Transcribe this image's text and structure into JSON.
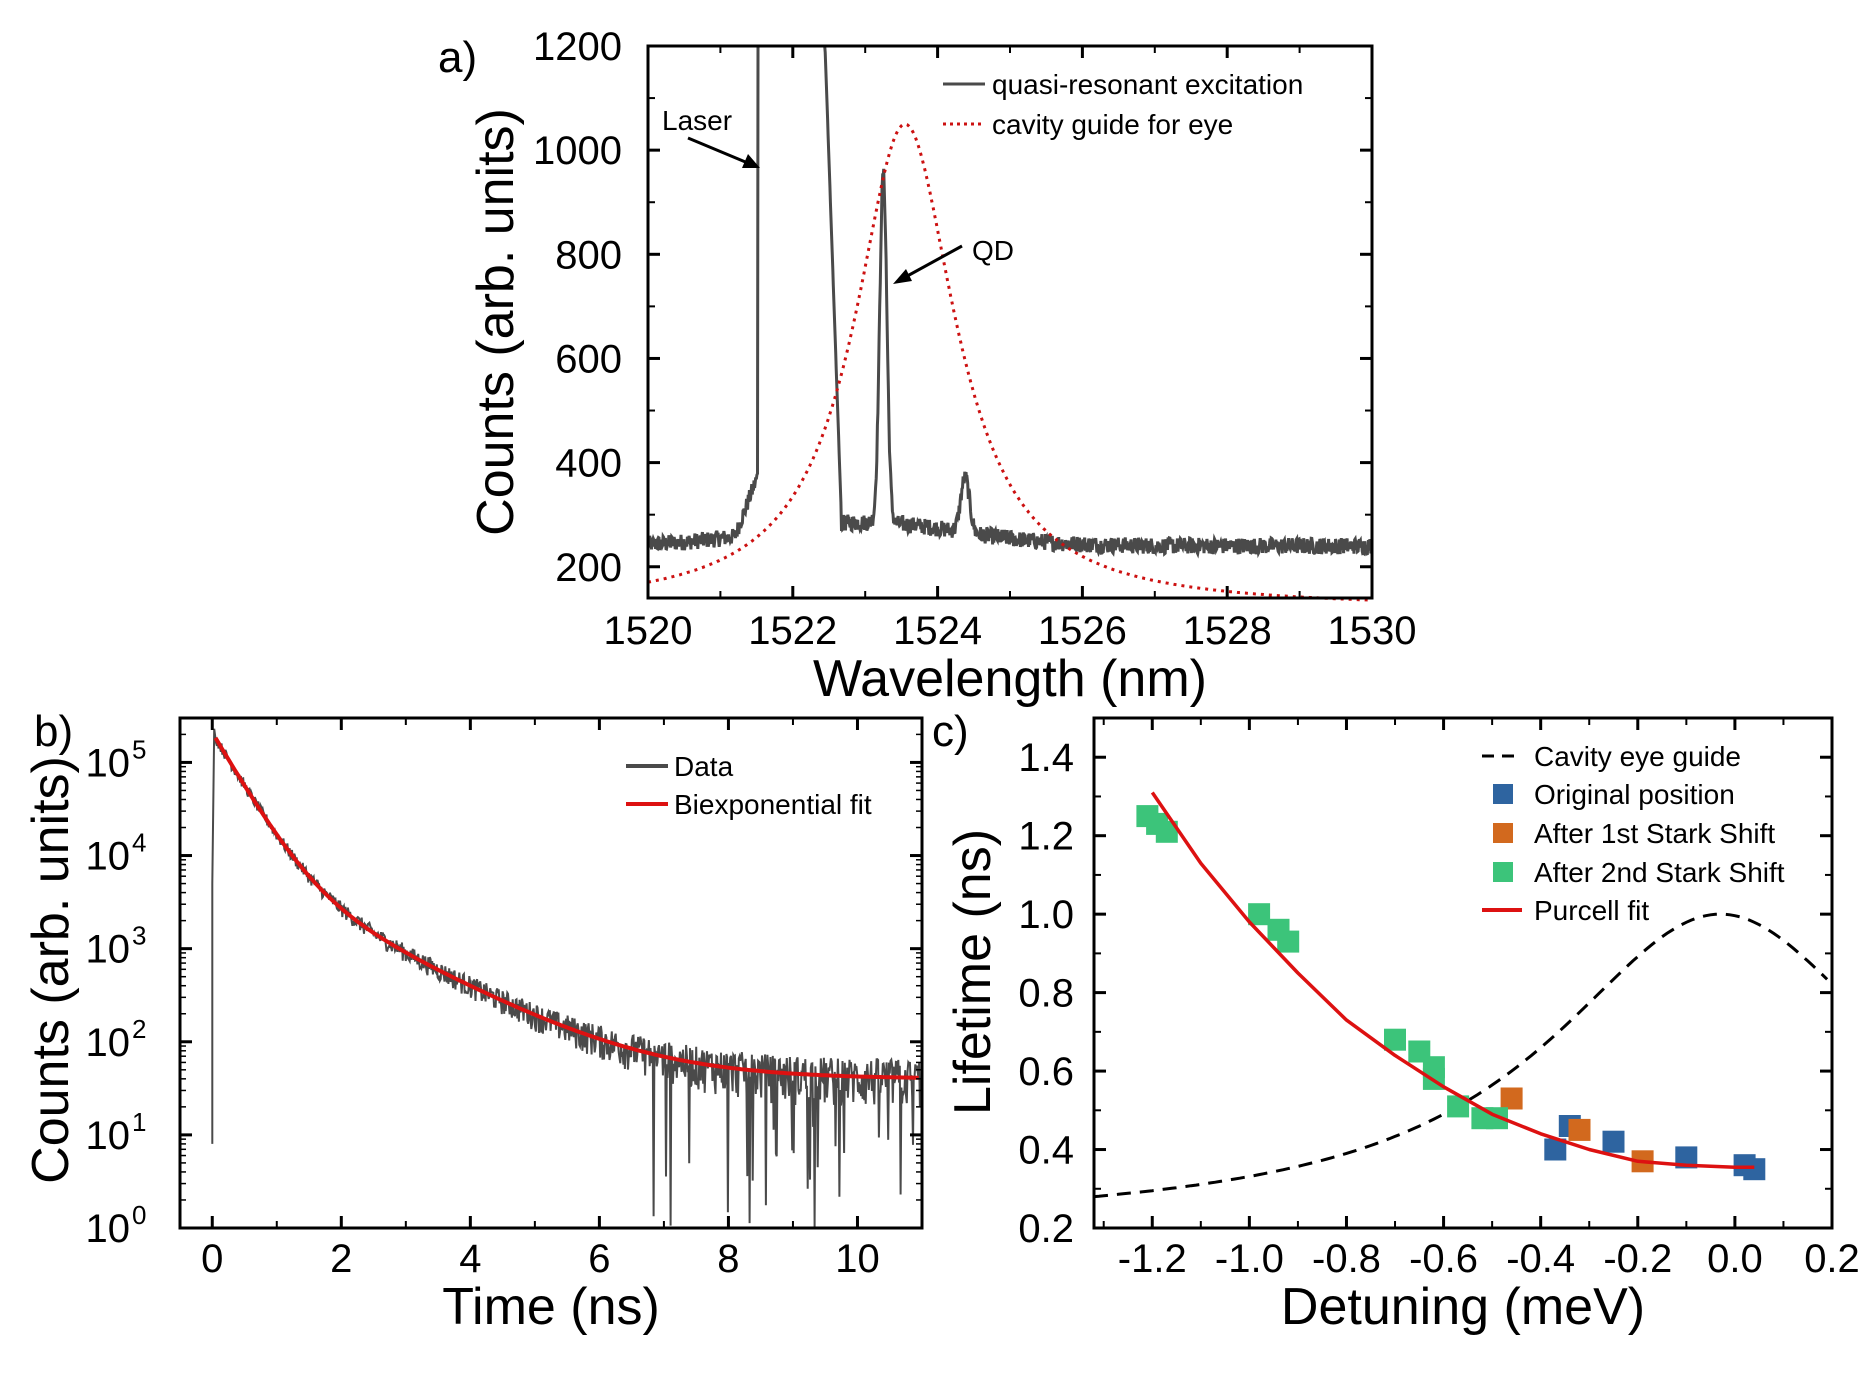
{
  "chart_data": [
    {
      "panel": "a)",
      "type": "line",
      "xlabel": "Wavelength (nm)",
      "ylabel": "Counts (arb. units)",
      "xlim": [
        1520,
        1530
      ],
      "ylim": [
        140,
        1200
      ],
      "xticks": [
        "1520",
        "1522",
        "1524",
        "1526",
        "1528",
        "1530"
      ],
      "yticks": [
        "200",
        "400",
        "600",
        "800",
        "1000",
        "1200"
      ],
      "legend": [
        {
          "label": "quasi-resonant excitation",
          "color": "#4a4a4a",
          "style": "solid"
        },
        {
          "label": "cavity guide for eye",
          "color": "#cc1111",
          "style": "dotted"
        }
      ],
      "annotations": [
        {
          "text": "Laser",
          "x": 1521.6,
          "y": 1000
        },
        {
          "text": "QD",
          "x": 1523.25,
          "y": 860
        }
      ],
      "series": [
        {
          "name": "quasi-resonant excitation",
          "color": "#4a4a4a",
          "baseline": 240,
          "laser_peak": {
            "from": 1521.52,
            "to": 1522.42
          },
          "qd_peak": {
            "center": 1523.25,
            "height": 910
          },
          "secondary_peak": {
            "center": 1524.38,
            "height": 385
          }
        },
        {
          "name": "cavity guide for eye",
          "color": "#cc1111",
          "type": "lorentzian",
          "center": 1523.55,
          "peak": 1050,
          "offset": 120,
          "hwhm": 0.85
        }
      ]
    },
    {
      "panel": "b)",
      "type": "line",
      "yscale": "log",
      "xlabel": "Time (ns)",
      "ylabel": "Counts (arb. units)",
      "xlim": [
        -0.5,
        11
      ],
      "ylim": [
        1,
        300000
      ],
      "xticks": [
        "0",
        "2",
        "4",
        "6",
        "8",
        "10"
      ],
      "yticks_base": "10",
      "yticks_exp": [
        "0",
        "1",
        "2",
        "3",
        "4",
        "5"
      ],
      "legend": [
        {
          "label": "Data",
          "color": "#4a4a4a"
        },
        {
          "label": "Biexponential fit",
          "color": "#dd1111"
        }
      ],
      "series": [
        {
          "name": "Data",
          "color": "#4a4a4a",
          "peak": 230000,
          "peak_time": 0.05,
          "floor_dip": 5000
        },
        {
          "name": "Biexponential fit",
          "color": "#dd1111",
          "a1": 200000,
          "tau1": 0.36,
          "a2": 10000,
          "tau2": 1.2,
          "offset": 40
        }
      ]
    },
    {
      "panel": "c)",
      "type": "scatter",
      "xlabel": "Detuning (meV)",
      "ylabel": "Lifetime (ns)",
      "xlim": [
        -1.32,
        0.2
      ],
      "ylim": [
        0.2,
        1.5
      ],
      "xticks": [
        "-1.2",
        "-1.0",
        "-0.8",
        "-0.6",
        "-0.4",
        "-0.2",
        "0.0",
        "0.2"
      ],
      "yticks": [
        "0.2",
        "0.4",
        "0.6",
        "0.8",
        "1.0",
        "1.2",
        "1.4"
      ],
      "legend": [
        {
          "label": "Cavity eye guide",
          "color": "#000000",
          "kind": "dashed"
        },
        {
          "label": "Original position",
          "color": "#2e64a0",
          "kind": "square"
        },
        {
          "label": "After 1st Stark Shift",
          "color": "#d2691e",
          "kind": "square"
        },
        {
          "label": "After 2nd Stark Shift",
          "color": "#3cc47a",
          "kind": "square"
        },
        {
          "label": "Purcell fit",
          "color": "#dd1111",
          "kind": "line"
        }
      ],
      "series": [
        {
          "name": "Original position",
          "color": "#2e64a0",
          "points": [
            [
              -0.37,
              0.4
            ],
            [
              -0.34,
              0.46
            ],
            [
              -0.25,
              0.42
            ],
            [
              -0.1,
              0.38
            ],
            [
              0.02,
              0.36
            ],
            [
              0.04,
              0.35
            ]
          ]
        },
        {
          "name": "After 1st Stark Shift",
          "color": "#d2691e",
          "points": [
            [
              -0.46,
              0.53
            ],
            [
              -0.32,
              0.45
            ],
            [
              -0.19,
              0.37
            ]
          ]
        },
        {
          "name": "After 2nd Stark Shift",
          "color": "#3cc47a",
          "points": [
            [
              -1.21,
              1.25
            ],
            [
              -1.19,
              1.23
            ],
            [
              -1.17,
              1.21
            ],
            [
              -0.98,
              1.0
            ],
            [
              -0.94,
              0.96
            ],
            [
              -0.92,
              0.93
            ],
            [
              -0.7,
              0.68
            ],
            [
              -0.65,
              0.65
            ],
            [
              -0.62,
              0.61
            ],
            [
              -0.62,
              0.58
            ],
            [
              -0.57,
              0.51
            ],
            [
              -0.52,
              0.48
            ],
            [
              -0.49,
              0.48
            ]
          ]
        },
        {
          "name": "Purcell fit",
          "color": "#dd1111",
          "type": "line",
          "points": [
            [
              -1.2,
              1.31
            ],
            [
              -1.1,
              1.13
            ],
            [
              -1.0,
              0.98
            ],
            [
              -0.9,
              0.85
            ],
            [
              -0.8,
              0.73
            ],
            [
              -0.7,
              0.64
            ],
            [
              -0.6,
              0.56
            ],
            [
              -0.5,
              0.49
            ],
            [
              -0.4,
              0.44
            ],
            [
              -0.3,
              0.4
            ],
            [
              -0.2,
              0.37
            ],
            [
              -0.1,
              0.36
            ],
            [
              0.0,
              0.355
            ],
            [
              0.04,
              0.355
            ]
          ]
        },
        {
          "name": "Cavity eye guide",
          "color": "#000000",
          "type": "line",
          "style": "dashed",
          "center": -0.03,
          "peak": 1.0,
          "offset": 0.2,
          "hwhm": 0.43,
          "xmax": 0.2
        }
      ]
    }
  ]
}
